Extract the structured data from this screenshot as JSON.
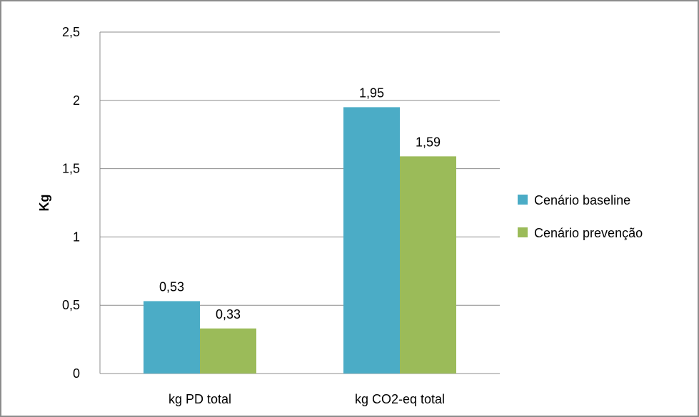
{
  "chart_data": {
    "type": "bar",
    "ylabel": "Kg",
    "xlabel": "",
    "title": "",
    "ylim": [
      0,
      2.5
    ],
    "yticks": [
      "0",
      "0,5",
      "1",
      "1,5",
      "2",
      "2,5"
    ],
    "ytick_values": [
      0,
      0.5,
      1,
      1.5,
      2,
      2.5
    ],
    "categories": [
      "kg PD total",
      "kg CO2-eq  total"
    ],
    "series": [
      {
        "name": "Cenário baseline",
        "color": "#4bacc6",
        "values": [
          0.53,
          1.95
        ],
        "value_labels": [
          "0,53",
          "1,95"
        ]
      },
      {
        "name": "Cenário prevenção",
        "color": "#9bbb59",
        "values": [
          0.33,
          1.59
        ],
        "value_labels": [
          "0,33",
          "1,59"
        ]
      }
    ],
    "grid": true,
    "legend_position": "right"
  }
}
